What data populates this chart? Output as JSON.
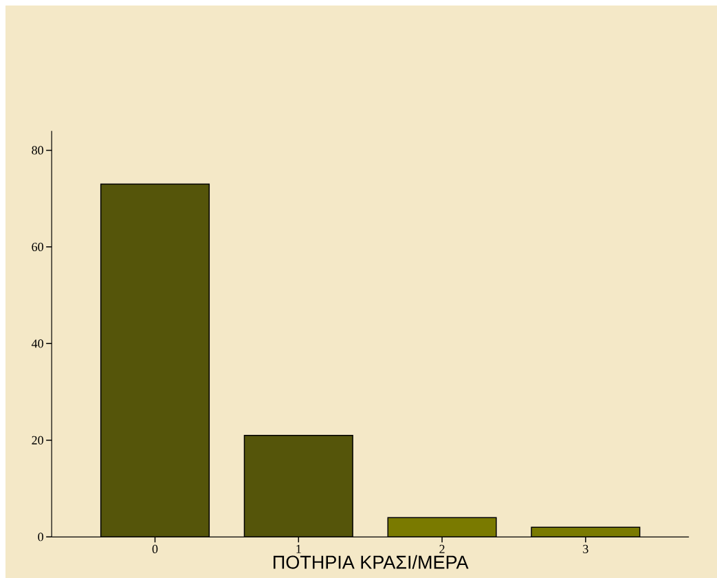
{
  "chart_data": {
    "type": "bar",
    "xlabel": "ΠΟΤΗΡΙΑ ΚΡΑΣΙ/ΜΕΡΑ",
    "categories": [
      "0",
      "1",
      "2",
      "3"
    ],
    "values": [
      73,
      21,
      4,
      2
    ],
    "colors": [
      "#55550a",
      "#55550a",
      "#7a7a00",
      "#7a7a00"
    ],
    "ylim": [
      0,
      84
    ],
    "yticks": [
      0,
      20,
      40,
      60,
      80
    ]
  }
}
